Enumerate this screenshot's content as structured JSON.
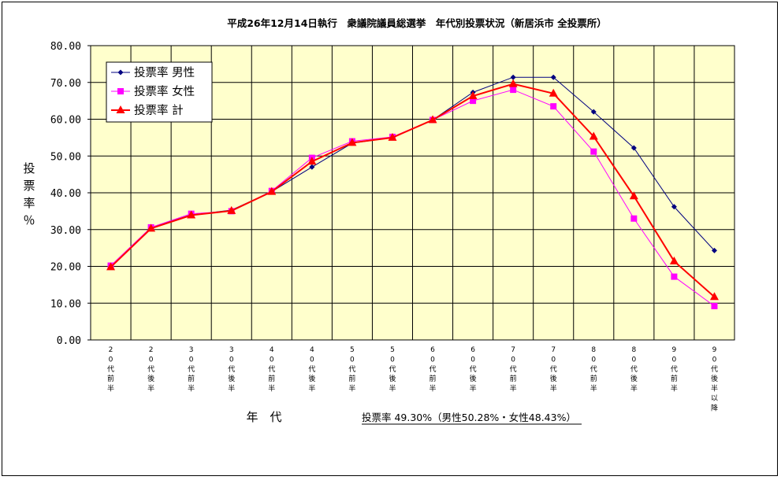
{
  "chart_data": {
    "type": "line",
    "title": "平成26年12月14日執行　衆議院議員総選挙　年代別投票状況（新居浜市 全投票所）",
    "ylabel": "投票率％",
    "xlabel": "年　代",
    "summary": "投票率 49.30%（男性50.28%・女性48.43%）",
    "ylim": [
      0,
      80
    ],
    "yticks": [
      "0.00",
      "10.00",
      "20.00",
      "30.00",
      "40.00",
      "50.00",
      "60.00",
      "70.00",
      "80.00"
    ],
    "grid": true,
    "legend_position": "top-left",
    "categories": [
      "20代前半",
      "20代後半",
      "30代前半",
      "30代後半",
      "40代前半",
      "40代後半",
      "50代前半",
      "50代後半",
      "60代前半",
      "60代後半",
      "70代前半",
      "70代後半",
      "80代前半",
      "80代後半",
      "90代前半",
      "90代後半以降"
    ],
    "series": [
      {
        "name": "投票率 男性",
        "color": "#000080",
        "marker": "diamond",
        "values": [
          19.8,
          30.5,
          34.0,
          35.3,
          40.3,
          47.0,
          53.5,
          55.0,
          59.8,
          67.3,
          71.4,
          71.4,
          62.0,
          52.2,
          36.2,
          24.3
        ]
      },
      {
        "name": "投票率 女性",
        "color": "#ff00ff",
        "marker": "square",
        "values": [
          20.2,
          30.6,
          34.3,
          35.0,
          40.5,
          49.5,
          54.0,
          55.2,
          59.8,
          65.0,
          68.0,
          63.5,
          51.2,
          33.0,
          17.2,
          9.2
        ]
      },
      {
        "name": "投票率 計",
        "color": "#ff0000",
        "marker": "triangle",
        "values": [
          19.8,
          30.3,
          33.9,
          35.1,
          40.3,
          48.5,
          53.6,
          55.0,
          59.8,
          66.3,
          69.6,
          67.0,
          55.3,
          39.1,
          21.4,
          11.7
        ]
      }
    ]
  },
  "colors": {
    "plot_background": "#ffffcc",
    "grid": "#000000"
  }
}
